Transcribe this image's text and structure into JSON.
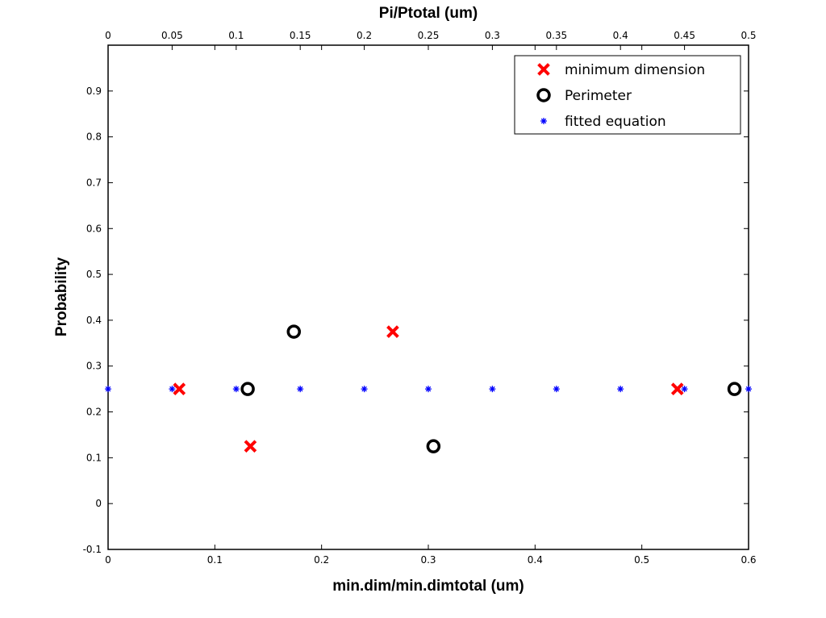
{
  "chart_data": {
    "type": "scatter",
    "xlabel": "min.dim/min.dimtotal (um)",
    "x2label": "Pi/Ptotal (um)",
    "ylabel": "Probability",
    "xlim": [
      0,
      0.6
    ],
    "x2lim": [
      0,
      0.5
    ],
    "ylim": [
      -0.1,
      1.0
    ],
    "xticks": [
      "0",
      "0.1",
      "0.2",
      "0.3",
      "0.4",
      "0.5",
      "0.6"
    ],
    "x2ticks": [
      "0",
      "0.05",
      "0.1",
      "0.15",
      "0.2",
      "0.25",
      "0.3",
      "0.35",
      "0.4",
      "0.45",
      "0.5"
    ],
    "yticks": [
      "-0.1",
      "0",
      "0.1",
      "0.2",
      "0.3",
      "0.4",
      "0.5",
      "0.6",
      "0.7",
      "0.8",
      "0.9"
    ],
    "grid": false,
    "legend_position": "top-right",
    "series": [
      {
        "name": "minimum dimension",
        "marker": "x",
        "color": "#ff0000",
        "axis": "bottom",
        "x": [
          0.0667,
          0.1333,
          0.2667,
          0.5333
        ],
        "y": [
          0.25,
          0.125,
          0.375,
          0.25
        ]
      },
      {
        "name": "Perimeter",
        "marker": "o",
        "color": "#000000",
        "axis": "top",
        "x": [
          0.109,
          0.145,
          0.254,
          0.489
        ],
        "y": [
          0.25,
          0.375,
          0.125,
          0.25
        ]
      },
      {
        "name": "fitted equation",
        "marker": "*",
        "color": "#0000ff",
        "axis": "bottom",
        "x": [
          0,
          0.06,
          0.12,
          0.18,
          0.24,
          0.3,
          0.36,
          0.42,
          0.48,
          0.54,
          0.6
        ],
        "y": [
          0.25,
          0.25,
          0.25,
          0.25,
          0.25,
          0.25,
          0.25,
          0.25,
          0.25,
          0.25,
          0.25
        ]
      }
    ]
  }
}
